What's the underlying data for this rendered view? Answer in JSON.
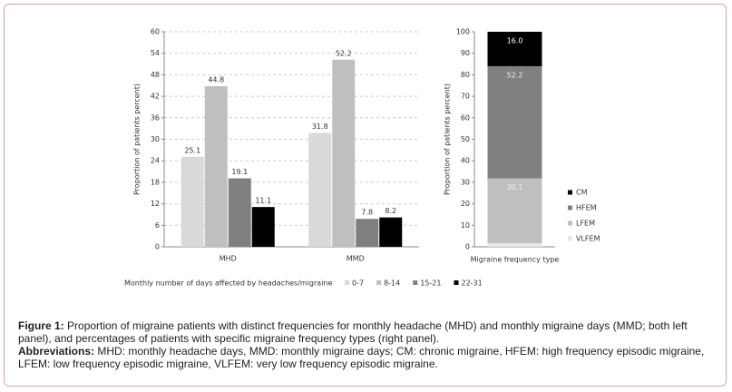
{
  "chart_data": [
    {
      "type": "bar",
      "y_label": "Proportion of patients percent)",
      "x_label": "Monthly number of days affected by headaches/migraine",
      "categories": [
        "MHD",
        "MMD"
      ],
      "series": [
        {
          "name": "0-7",
          "color": "#d9d9d9",
          "values": [
            25.1,
            31.8
          ]
        },
        {
          "name": "8-14",
          "color": "#bfbfbf",
          "values": [
            44.8,
            52.2
          ]
        },
        {
          "name": "15-21",
          "color": "#7f7f7f",
          "values": [
            19.1,
            7.8
          ]
        },
        {
          "name": "22-31",
          "color": "#000000",
          "values": [
            11.1,
            8.2
          ]
        }
      ],
      "ylim": [
        0,
        60
      ],
      "yticks": [
        0,
        6,
        12,
        18,
        24,
        30,
        36,
        42,
        48,
        54,
        60
      ],
      "grid": true,
      "legend": "bottom"
    },
    {
      "type": "stacked_bar",
      "y_label": "Proportion of patients percent)",
      "x_label": "Migraine frequency type",
      "categories": [
        null
      ],
      "series": [
        {
          "name": "VLFEM",
          "color": "#e6e6e6",
          "values": [
            1.7
          ]
        },
        {
          "name": "LFEM",
          "color": "#bfbfbf",
          "values": [
            30.1
          ]
        },
        {
          "name": "HFEM",
          "color": "#808080",
          "values": [
            52.2
          ]
        },
        {
          "name": "CM",
          "color": "#000000",
          "values": [
            16
          ],
          "value_labels": [
            "16.0"
          ]
        }
      ],
      "ylim": [
        0,
        100
      ],
      "yticks": [
        0,
        10,
        20,
        30,
        40,
        50,
        60,
        70,
        80,
        90,
        100
      ],
      "grid": false,
      "legend": "right"
    }
  ],
  "caption": {
    "figure_label": "Figure 1:",
    "figure_text": "Proportion of migraine patients with distinct frequencies for monthly headache (MHD) and monthly migraine days (MMD; both left panel), and percentages of patients with specific migraine frequency types (right panel).",
    "abbrev_label": "Abbreviations:",
    "abbrev_text": "MHD: monthly headache days, MMD: monthly migraine days; CM: chronic migraine, HFEM: high frequency episodic migraine, LFEM: low frequency episodic migraine, VLFEM: very low frequency episodic migraine."
  }
}
